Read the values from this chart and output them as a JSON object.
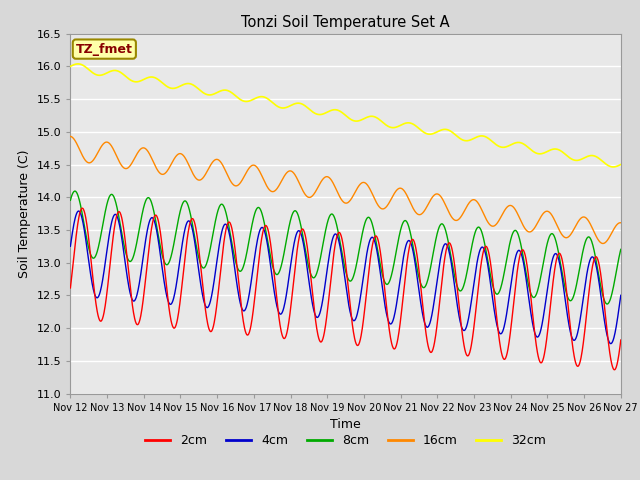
{
  "title": "Tonzi Soil Temperature Set A",
  "xlabel": "Time",
  "ylabel": "Soil Temperature (C)",
  "ylim": [
    11.0,
    16.5
  ],
  "annotation_text": "TZ_fmet",
  "annotation_bgcolor": "#ffffaa",
  "annotation_edgecolor": "#998800",
  "annotation_textcolor": "#880000",
  "fig_facecolor": "#d8d8d8",
  "axes_facecolor": "#e8e8e8",
  "series": {
    "2cm": {
      "color": "#ff0000",
      "linewidth": 1.0
    },
    "4cm": {
      "color": "#0000cc",
      "linewidth": 1.0
    },
    "8cm": {
      "color": "#00aa00",
      "linewidth": 1.0
    },
    "16cm": {
      "color": "#ff8800",
      "linewidth": 1.0
    },
    "32cm": {
      "color": "#ffff00",
      "linewidth": 1.2
    }
  },
  "xtick_labels": [
    "Nov 12",
    "Nov 13",
    "Nov 14",
    "Nov 15",
    "Nov 16",
    "Nov 17",
    "Nov 18",
    "Nov 19",
    "Nov 20",
    "Nov 21",
    "Nov 22",
    "Nov 23",
    "Nov 24",
    "Nov 25",
    "Nov 26",
    "Nov 27"
  ],
  "ytick_labels": [
    11.0,
    11.5,
    12.0,
    12.5,
    13.0,
    13.5,
    14.0,
    14.5,
    15.0,
    15.5,
    16.0,
    16.5
  ],
  "legend_labels": [
    "2cm",
    "4cm",
    "8cm",
    "16cm",
    "32cm"
  ],
  "legend_colors": [
    "#ff0000",
    "#0000cc",
    "#00aa00",
    "#ff8800",
    "#ffff00"
  ]
}
